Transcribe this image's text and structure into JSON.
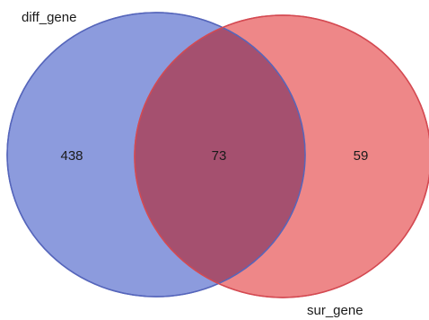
{
  "venn": {
    "sets": [
      {
        "name": "diff_gene",
        "color": "#6b7fd4",
        "stroke": "#5666bb"
      },
      {
        "name": "sur_gene",
        "color": "#e96566",
        "stroke": "#d44a52"
      }
    ],
    "regions": {
      "only_a": "438",
      "intersection": "73",
      "only_b": "59"
    },
    "overlap_color": "#a5506f"
  }
}
